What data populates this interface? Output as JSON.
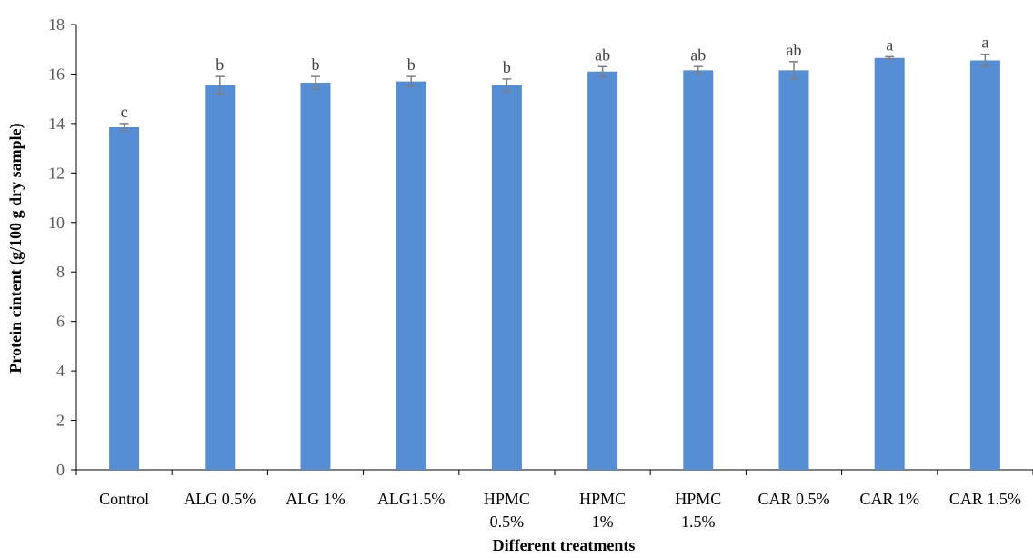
{
  "chart_data": {
    "type": "bar",
    "title": "",
    "xlabel": "Different treatments",
    "ylabel": "Protein cintent (g/100 g dry sample)",
    "ylim": [
      0,
      18
    ],
    "yticks": [
      0,
      2,
      4,
      6,
      8,
      10,
      12,
      14,
      16,
      18
    ],
    "grid": false,
    "legend": "none",
    "bar_color": "#558ED5",
    "error_color": "#808080",
    "categories": [
      [
        "Control"
      ],
      [
        "ALG 0.5%"
      ],
      [
        "ALG 1%"
      ],
      [
        "ALG1.5%"
      ],
      [
        "HPMC",
        "0.5%"
      ],
      [
        "HPMC",
        "1%"
      ],
      [
        "HPMC",
        "1.5%"
      ],
      [
        "CAR 0.5%"
      ],
      [
        "CAR 1%"
      ],
      [
        "CAR 1.5%"
      ]
    ],
    "values": [
      13.85,
      15.55,
      15.65,
      15.7,
      15.55,
      16.1,
      16.15,
      16.15,
      16.65,
      16.55
    ],
    "errors": [
      0.15,
      0.35,
      0.25,
      0.2,
      0.25,
      0.2,
      0.15,
      0.35,
      0.05,
      0.25
    ],
    "significance": [
      "c",
      "b",
      "b",
      "b",
      "b",
      "ab",
      "ab",
      "ab",
      "a",
      "a"
    ]
  }
}
